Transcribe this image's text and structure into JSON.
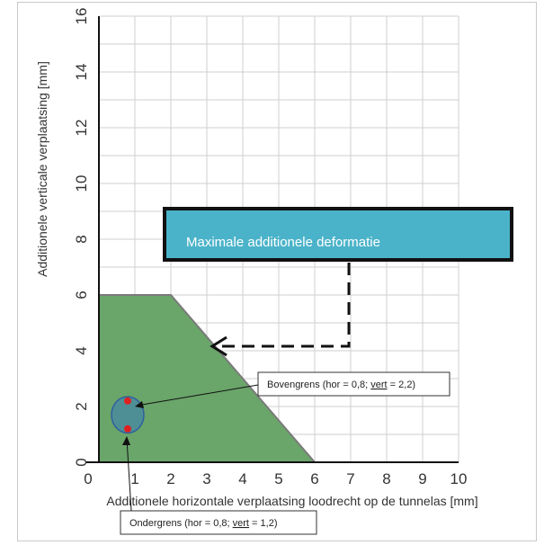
{
  "chart_data": {
    "type": "area",
    "title": "",
    "xlabel": "Additionele horizontale verplaatsing loodrecht op de tunnelas [mm]",
    "ylabel": "Additionele verticale verplaatsing [mm]",
    "xlim": [
      0,
      10
    ],
    "ylim": [
      0,
      16
    ],
    "x_ticks": [
      "0",
      "1",
      "2",
      "3",
      "4",
      "5",
      "6",
      "7",
      "8",
      "9",
      "10"
    ],
    "y_ticks": [
      "0",
      "2",
      "4",
      "6",
      "8",
      "10",
      "12",
      "14",
      "16"
    ],
    "grid": true,
    "region": {
      "points": [
        [
          0,
          0
        ],
        [
          0,
          6.0
        ],
        [
          2.0,
          6.0
        ],
        [
          6.0,
          0
        ]
      ],
      "color": "#6aa56a"
    },
    "ellipse": {
      "cx": 0.8,
      "cy": 1.7,
      "rx": 0.45,
      "ry": 0.65,
      "color": "#4e8f96"
    },
    "points": [
      {
        "x": 0.8,
        "y": 2.2
      },
      {
        "x": 0.8,
        "y": 1.2
      }
    ],
    "callout": {
      "text": "Maximale additionele deformatie",
      "color": "#4bb3c9",
      "target": {
        "x": 3.0,
        "y": 4.5
      }
    },
    "annotations": {
      "upper": {
        "prefix": "Bovengrens (hor = 0,8; ",
        "word": "vert",
        "suffix": " = 2,2)"
      },
      "lower": {
        "prefix": "Ondergrens (hor = 0,8; ",
        "word": "vert",
        "suffix": " = 1,2)"
      }
    }
  }
}
